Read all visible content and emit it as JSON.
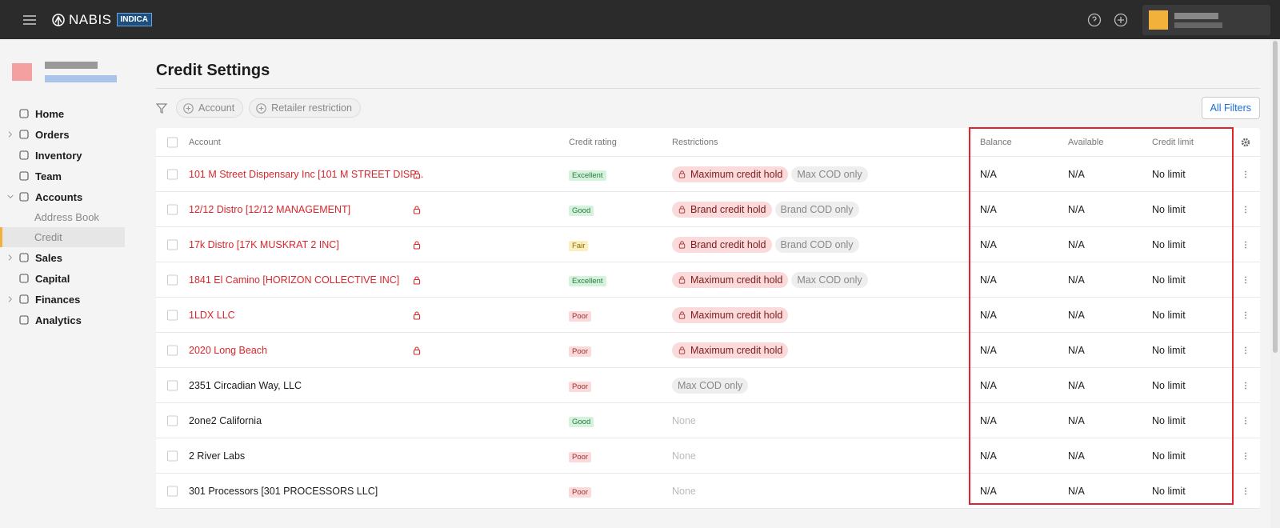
{
  "header": {
    "brand": "NABIS",
    "badge": "INDICA"
  },
  "sidebar": {
    "items": [
      {
        "label": "Home",
        "expandable": false,
        "sub": false,
        "selected": false
      },
      {
        "label": "Orders",
        "expandable": true,
        "sub": false,
        "selected": false
      },
      {
        "label": "Inventory",
        "expandable": false,
        "sub": false,
        "selected": false
      },
      {
        "label": "Team",
        "expandable": false,
        "sub": false,
        "selected": false
      },
      {
        "label": "Accounts",
        "expandable": true,
        "expanded": true,
        "sub": false,
        "selected": false
      },
      {
        "label": "Address Book",
        "expandable": false,
        "sub": true,
        "selected": false
      },
      {
        "label": "Credit",
        "expandable": false,
        "sub": true,
        "selected": true
      },
      {
        "label": "Sales",
        "expandable": true,
        "sub": false,
        "selected": false
      },
      {
        "label": "Capital",
        "expandable": false,
        "sub": false,
        "selected": false
      },
      {
        "label": "Finances",
        "expandable": true,
        "sub": false,
        "selected": false
      },
      {
        "label": "Analytics",
        "expandable": false,
        "sub": false,
        "selected": false
      }
    ]
  },
  "page": {
    "title": "Credit Settings",
    "filters": [
      "Account",
      "Retailer restriction"
    ],
    "all_filters": "All Filters"
  },
  "table": {
    "columns": [
      "Account",
      "Credit rating",
      "Restrictions",
      "Balance",
      "Available",
      "Credit limit"
    ],
    "rows": [
      {
        "account": "101 M Street Dispensary Inc [101 M STREET DISP...",
        "locked": true,
        "rating": "Excellent",
        "rating_tone": "good",
        "restrictions": [
          {
            "text": "Maximum credit hold",
            "kind": "hold"
          },
          {
            "text": "Max COD only",
            "kind": "cod"
          }
        ],
        "balance": "N/A",
        "available": "N/A",
        "credit_limit": "No limit"
      },
      {
        "account": "12/12 Distro [12/12 MANAGEMENT]",
        "locked": true,
        "rating": "Good",
        "rating_tone": "good",
        "restrictions": [
          {
            "text": "Brand credit hold",
            "kind": "hold"
          },
          {
            "text": "Brand COD only",
            "kind": "cod"
          }
        ],
        "balance": "N/A",
        "available": "N/A",
        "credit_limit": "No limit"
      },
      {
        "account": "17k Distro [17K MUSKRAT 2 INC]",
        "locked": true,
        "rating": "Fair",
        "rating_tone": "fair",
        "restrictions": [
          {
            "text": "Brand credit hold",
            "kind": "hold"
          },
          {
            "text": "Brand COD only",
            "kind": "cod"
          }
        ],
        "balance": "N/A",
        "available": "N/A",
        "credit_limit": "No limit"
      },
      {
        "account": "1841 El Camino [HORIZON COLLECTIVE INC]",
        "locked": true,
        "rating": "Excellent",
        "rating_tone": "good",
        "restrictions": [
          {
            "text": "Maximum credit hold",
            "kind": "hold"
          },
          {
            "text": "Max COD only",
            "kind": "cod"
          }
        ],
        "balance": "N/A",
        "available": "N/A",
        "credit_limit": "No limit"
      },
      {
        "account": "1LDX LLC",
        "locked": true,
        "rating": "Poor",
        "rating_tone": "poor",
        "restrictions": [
          {
            "text": "Maximum credit hold",
            "kind": "hold"
          }
        ],
        "balance": "N/A",
        "available": "N/A",
        "credit_limit": "No limit"
      },
      {
        "account": "2020 Long Beach",
        "locked": true,
        "rating": "Poor",
        "rating_tone": "poor",
        "restrictions": [
          {
            "text": "Maximum credit hold",
            "kind": "hold"
          }
        ],
        "balance": "N/A",
        "available": "N/A",
        "credit_limit": "No limit"
      },
      {
        "account": "2351 Circadian Way, LLC",
        "locked": false,
        "rating": "Poor",
        "rating_tone": "poor",
        "restrictions": [
          {
            "text": "Max COD only",
            "kind": "cod"
          }
        ],
        "balance": "N/A",
        "available": "N/A",
        "credit_limit": "No limit"
      },
      {
        "account": "2one2 California",
        "locked": false,
        "rating": "Good",
        "rating_tone": "good",
        "restrictions": [
          {
            "text": "None",
            "kind": "none"
          }
        ],
        "balance": "N/A",
        "available": "N/A",
        "credit_limit": "No limit"
      },
      {
        "account": "2 River Labs",
        "locked": false,
        "rating": "Poor",
        "rating_tone": "poor",
        "restrictions": [
          {
            "text": "None",
            "kind": "none"
          }
        ],
        "balance": "N/A",
        "available": "N/A",
        "credit_limit": "No limit"
      },
      {
        "account": "301 Processors [301 PROCESSORS LLC]",
        "locked": false,
        "rating": "Poor",
        "rating_tone": "poor",
        "restrictions": [
          {
            "text": "None",
            "kind": "none"
          }
        ],
        "balance": "N/A",
        "available": "N/A",
        "credit_limit": "No limit"
      }
    ]
  }
}
